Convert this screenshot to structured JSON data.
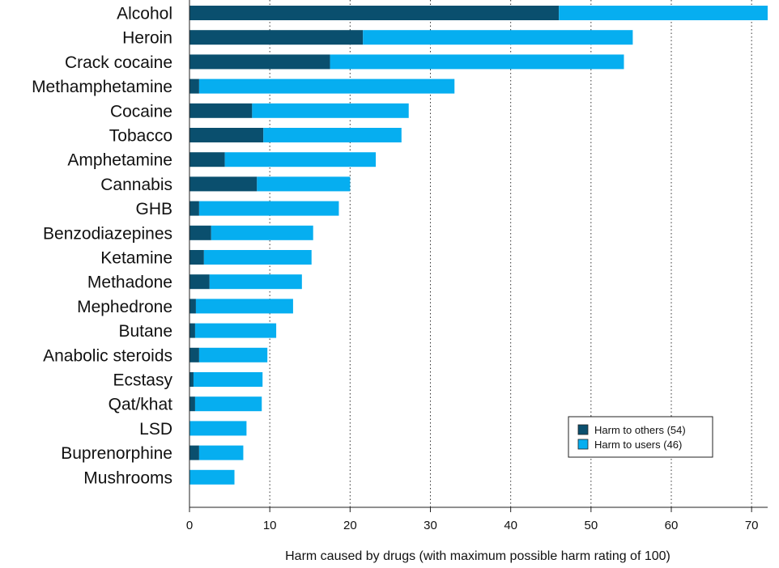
{
  "chart_data": {
    "type": "bar",
    "orientation": "horizontal",
    "stacked": true,
    "categories": [
      "Alcohol",
      "Heroin",
      "Crack cocaine",
      "Methamphetamine",
      "Cocaine",
      "Tobacco",
      "Amphetamine",
      "Cannabis",
      "GHB",
      "Benzodiazepines",
      "Ketamine",
      "Methadone",
      "Mephedrone",
      "Butane",
      "Anabolic steroids",
      "Ecstasy",
      "Qat/khat",
      "LSD",
      "Buprenorphine",
      "Mushrooms"
    ],
    "series": [
      {
        "name": "Harm to others (54)",
        "color": "#0a4f6e",
        "values": [
          46,
          21.6,
          17.5,
          1.2,
          7.8,
          9.2,
          4.4,
          8.4,
          1.2,
          2.7,
          1.8,
          2.5,
          0.8,
          0.7,
          1.2,
          0.5,
          0.7,
          0,
          1.2,
          0
        ]
      },
      {
        "name": "Harm to users (46)",
        "color": "#06aef0",
        "values": [
          26,
          33.6,
          36.6,
          31.8,
          19.5,
          17.2,
          18.8,
          11.6,
          17.4,
          12.7,
          13.4,
          11.5,
          12.1,
          10.1,
          8.5,
          8.6,
          8.3,
          7.1,
          5.5,
          5.6
        ]
      }
    ],
    "xlabel": "Harm caused by drugs (with maximum possible harm rating of 100)",
    "ylabel": "",
    "xlim": [
      0,
      72
    ],
    "xticks": [
      0,
      10,
      20,
      30,
      40,
      50,
      60,
      70
    ],
    "grid": "vertical-dotted",
    "legend_position": "bottom-right"
  }
}
